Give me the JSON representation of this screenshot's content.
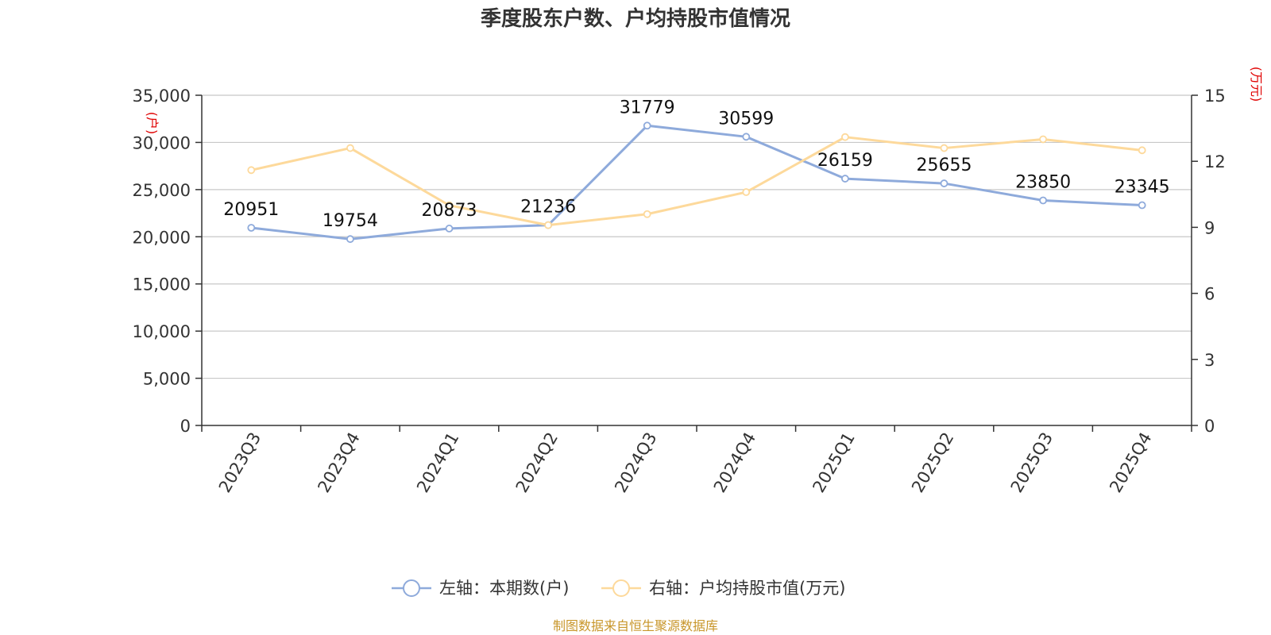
{
  "chart_data": {
    "type": "line",
    "title": "季度股东户数、户均持股市值情况",
    "categories": [
      "2023Q3",
      "2023Q4",
      "2024Q1",
      "2024Q2",
      "2024Q3",
      "2024Q4",
      "2025Q1",
      "2025Q2",
      "2025Q3",
      "2025Q4"
    ],
    "left_axis": {
      "unit": "(户)",
      "ylim": [
        0,
        35000
      ],
      "ticks": [
        0,
        5000,
        10000,
        15000,
        20000,
        25000,
        30000,
        35000
      ],
      "tick_labels": [
        "0",
        "5,000",
        "10,000",
        "15,000",
        "20,000",
        "25,000",
        "30,000",
        "35,000"
      ]
    },
    "right_axis": {
      "unit": "(万元)",
      "ylim": [
        0,
        15
      ],
      "ticks": [
        0,
        3,
        6,
        9,
        12,
        15
      ],
      "tick_labels": [
        "0",
        "3",
        "6",
        "9",
        "12",
        "15"
      ]
    },
    "series": [
      {
        "name": "左轴：本期数(户)",
        "axis": "left",
        "color": "#8eaadb",
        "values": [
          20951,
          19754,
          20873,
          21236,
          31779,
          30599,
          26159,
          25655,
          23850,
          23345
        ],
        "labels": [
          "20951",
          "19754",
          "20873",
          "21236",
          "31779",
          "30599",
          "26159",
          "25655",
          "23850",
          "23345"
        ]
      },
      {
        "name": "右轴：户均持股市值(万元)",
        "axis": "right",
        "color": "#fdd99b",
        "values": [
          11.6,
          12.6,
          10.0,
          9.1,
          9.6,
          10.6,
          13.1,
          12.6,
          13.0,
          12.5
        ]
      }
    ],
    "grid": true,
    "legend": "bottom-center",
    "source": "制图数据来自恒生聚源数据库"
  }
}
